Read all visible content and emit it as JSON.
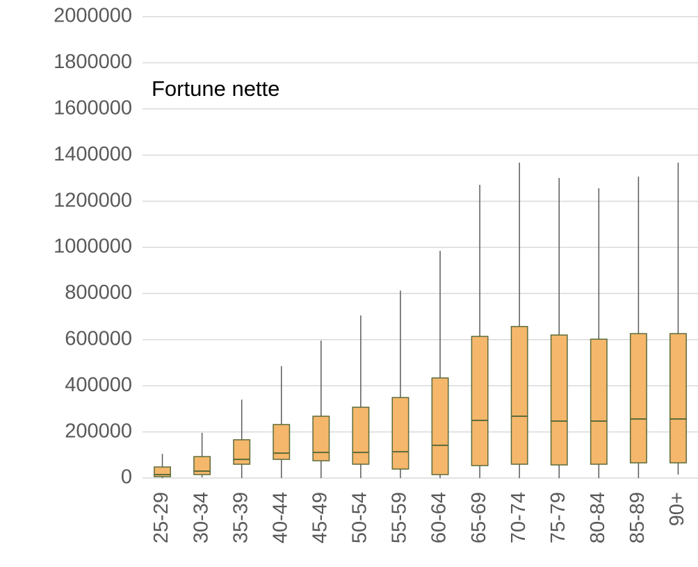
{
  "chart_data": {
    "type": "box",
    "title": "Fortune nette",
    "categories": [
      "25-29",
      "30-34",
      "35-39",
      "40-44",
      "45-49",
      "50-54",
      "55-59",
      "60-64",
      "65-69",
      "70-74",
      "75-79",
      "80-84",
      "85-89",
      "90+"
    ],
    "min": [
      0,
      3000,
      0,
      0,
      0,
      0,
      0,
      0,
      0,
      0,
      0,
      0,
      0,
      15000
    ],
    "q1": [
      6000,
      15000,
      60000,
      81000,
      75000,
      60000,
      39000,
      15000,
      54000,
      60000,
      57000,
      60000,
      66000,
      66000
    ],
    "median": [
      15000,
      30000,
      81000,
      108000,
      111000,
      111000,
      114000,
      142000,
      250000,
      268000,
      247000,
      247000,
      256000,
      256000
    ],
    "q3": [
      48000,
      93000,
      166000,
      232000,
      268000,
      307000,
      349000,
      434000,
      614000,
      657000,
      620000,
      602000,
      626000,
      626000
    ],
    "max": [
      105000,
      196000,
      340000,
      485000,
      596000,
      705000,
      813000,
      985000,
      1271000,
      1367000,
      1301000,
      1256000,
      1307000,
      1367000
    ],
    "color": "#f4b76b",
    "edge_color": "#5b6b3a",
    "whisker_color": "#595959",
    "ylim": [
      0,
      2000000
    ],
    "yticks": [
      0,
      200000,
      400000,
      600000,
      800000,
      1000000,
      1200000,
      1400000,
      1600000,
      1800000,
      2000000
    ],
    "grid": true
  }
}
